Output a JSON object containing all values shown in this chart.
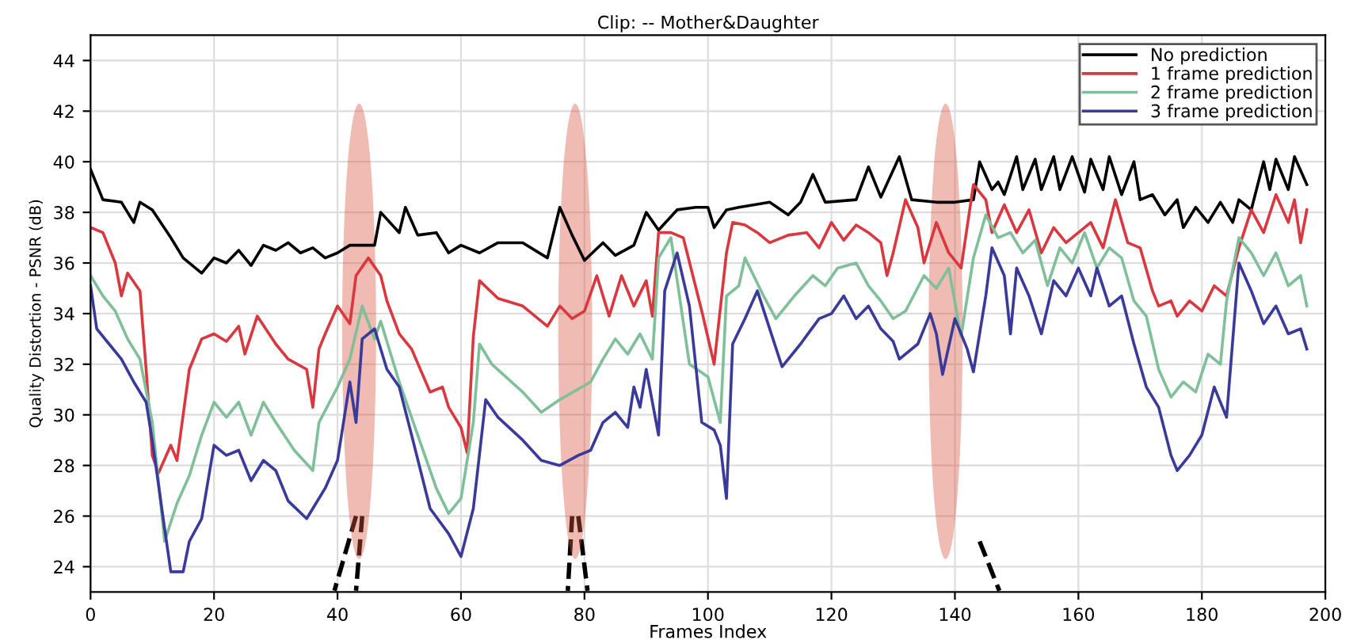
{
  "chart_data": {
    "type": "line",
    "title": "Clip: -- Mother&Daughter",
    "xlabel": "Frames Index",
    "ylabel": "Quality Distortion - PSNR (dB)",
    "xlim": [
      0,
      200
    ],
    "xticks": [
      0,
      20,
      40,
      60,
      80,
      100,
      120,
      140,
      160,
      180,
      200
    ],
    "ylim": [
      23,
      45
    ],
    "yticks": [
      24,
      26,
      28,
      30,
      32,
      34,
      36,
      38,
      40,
      42,
      44
    ],
    "grid": true,
    "legend": "top right",
    "marker": "none",
    "line_style": "solid",
    "series": [
      {
        "name": "No prediction",
        "color": "#000000",
        "x": [
          0,
          2,
          5,
          7,
          8,
          10,
          13,
          15,
          18,
          20,
          22,
          24,
          26,
          28,
          30,
          32,
          34,
          36,
          38,
          40,
          42,
          46,
          47,
          50,
          51,
          53,
          56,
          58,
          60,
          63,
          66,
          70,
          74,
          76,
          78,
          80,
          83,
          85,
          88,
          90,
          92,
          95,
          98,
          100,
          101,
          103,
          105,
          110,
          113,
          115,
          117,
          119,
          124,
          126,
          128,
          131,
          133,
          137,
          140,
          143,
          144,
          146,
          147,
          148,
          150,
          151,
          153,
          154,
          156,
          157,
          159,
          161,
          162,
          164,
          165,
          167,
          169,
          170,
          172,
          174,
          176,
          177,
          179,
          181,
          183,
          185,
          186,
          188,
          190,
          191,
          192,
          194,
          195,
          197
        ],
        "values": [
          39.7,
          38.5,
          38.4,
          37.6,
          38.4,
          38.1,
          37.0,
          36.2,
          35.6,
          36.2,
          36.0,
          36.5,
          35.9,
          36.7,
          36.5,
          36.8,
          36.4,
          36.6,
          36.2,
          36.4,
          36.7,
          36.7,
          38.0,
          37.2,
          38.2,
          37.1,
          37.2,
          36.4,
          36.7,
          36.4,
          36.8,
          36.8,
          36.2,
          38.2,
          37.1,
          36.1,
          36.8,
          36.3,
          36.7,
          38.0,
          37.3,
          38.1,
          38.2,
          38.2,
          37.4,
          38.1,
          38.2,
          38.4,
          37.9,
          38.4,
          39.5,
          38.4,
          38.5,
          39.8,
          38.6,
          40.2,
          38.5,
          38.4,
          38.4,
          38.5,
          40.0,
          38.9,
          39.2,
          38.7,
          40.2,
          38.9,
          40.1,
          38.9,
          40.2,
          38.9,
          40.2,
          38.8,
          40.1,
          38.9,
          40.2,
          38.7,
          40.0,
          38.5,
          38.7,
          37.9,
          38.5,
          37.4,
          38.2,
          37.6,
          38.4,
          37.6,
          38.5,
          38.1,
          40.0,
          38.9,
          40.1,
          38.9,
          40.2,
          39.1
        ]
      },
      {
        "name": "1 frame prediction",
        "color": "#d9383f",
        "x": [
          0,
          2,
          4,
          5,
          6,
          8,
          9,
          10,
          11,
          13,
          14,
          16,
          18,
          20,
          22,
          24,
          25,
          27,
          30,
          32,
          35,
          36,
          37,
          38,
          40,
          42,
          43,
          45,
          47,
          48,
          50,
          52,
          55,
          57,
          58,
          60,
          61,
          62,
          63,
          66,
          70,
          74,
          76,
          78,
          80,
          82,
          84,
          86,
          88,
          90,
          91,
          92,
          94,
          96,
          99,
          101,
          103,
          104,
          106,
          108,
          110,
          113,
          116,
          118,
          120,
          122,
          124,
          126,
          128,
          129,
          130,
          132,
          134,
          135,
          137,
          139,
          141,
          143,
          145,
          146,
          148,
          150,
          152,
          154,
          156,
          158,
          160,
          162,
          164,
          166,
          168,
          170,
          172,
          173,
          175,
          176,
          178,
          180,
          182,
          184,
          186,
          188,
          190,
          192,
          194,
          195,
          196,
          197
        ],
        "values": [
          37.4,
          37.2,
          36.0,
          34.7,
          35.6,
          34.9,
          31.8,
          28.4,
          27.7,
          28.8,
          28.2,
          31.8,
          33.0,
          33.2,
          32.9,
          33.5,
          32.4,
          33.9,
          32.8,
          32.2,
          31.8,
          30.3,
          32.6,
          33.2,
          34.3,
          33.6,
          35.5,
          36.2,
          35.5,
          34.5,
          33.2,
          32.6,
          30.9,
          31.1,
          30.3,
          29.5,
          28.5,
          33.1,
          35.3,
          34.6,
          34.3,
          33.5,
          34.3,
          33.8,
          34.1,
          35.5,
          33.9,
          35.5,
          34.3,
          35.3,
          33.9,
          37.2,
          37.2,
          37.0,
          34.1,
          32.0,
          36.4,
          37.6,
          37.5,
          37.2,
          36.8,
          37.1,
          37.2,
          36.6,
          37.6,
          36.9,
          37.5,
          37.2,
          36.8,
          35.5,
          36.4,
          38.5,
          37.4,
          36.0,
          37.6,
          36.4,
          35.8,
          39.1,
          38.5,
          37.2,
          38.3,
          37.2,
          38.1,
          36.4,
          37.4,
          36.8,
          37.2,
          37.6,
          36.6,
          38.5,
          36.8,
          36.6,
          34.9,
          34.3,
          34.5,
          33.9,
          34.5,
          34.1,
          35.1,
          34.7,
          36.6,
          38.1,
          37.2,
          38.7,
          37.6,
          38.5,
          36.8,
          38.1
        ]
      },
      {
        "name": "2 frame prediction",
        "color": "#7fbf99",
        "x": [
          0,
          2,
          4,
          6,
          7,
          8,
          10,
          12,
          14,
          16,
          18,
          20,
          22,
          24,
          26,
          28,
          30,
          33,
          36,
          37,
          40,
          42,
          44,
          46,
          47,
          50,
          53,
          56,
          58,
          60,
          62,
          63,
          65,
          70,
          73,
          76,
          81,
          83,
          85,
          87,
          89,
          91,
          92,
          94,
          97,
          100,
          102,
          103,
          105,
          106,
          109,
          111,
          114,
          117,
          119,
          121,
          124,
          126,
          128,
          130,
          132,
          135,
          137,
          139,
          141,
          143,
          145,
          147,
          149,
          151,
          153,
          155,
          157,
          159,
          161,
          163,
          165,
          167,
          169,
          171,
          173,
          175,
          177,
          179,
          181,
          183,
          184,
          186,
          188,
          190,
          192,
          194,
          196,
          197
        ],
        "values": [
          35.5,
          34.7,
          34.1,
          33.0,
          32.6,
          32.2,
          29.7,
          25.0,
          26.5,
          27.6,
          29.2,
          30.5,
          29.9,
          30.5,
          29.2,
          30.5,
          29.7,
          28.6,
          27.8,
          29.7,
          31.1,
          32.2,
          34.3,
          33.0,
          33.7,
          31.3,
          29.2,
          27.1,
          26.1,
          26.7,
          29.7,
          32.8,
          32.0,
          30.9,
          30.1,
          30.6,
          31.3,
          32.2,
          33.0,
          32.4,
          33.2,
          32.2,
          36.2,
          37.0,
          32.0,
          31.5,
          29.7,
          34.7,
          35.1,
          36.2,
          34.7,
          33.8,
          34.7,
          35.5,
          35.1,
          35.8,
          36.0,
          35.1,
          34.5,
          33.8,
          34.1,
          35.5,
          35.0,
          35.8,
          33.1,
          36.2,
          37.9,
          37.0,
          37.2,
          36.4,
          36.9,
          35.1,
          36.6,
          36.0,
          37.2,
          35.8,
          36.6,
          36.2,
          34.5,
          33.9,
          31.8,
          30.7,
          31.3,
          30.9,
          32.4,
          32.0,
          34.5,
          37.0,
          36.4,
          35.5,
          36.4,
          35.1,
          35.5,
          34.3
        ]
      },
      {
        "name": "3 frame prediction",
        "color": "#3a3a9a",
        "x": [
          0,
          1,
          3,
          5,
          7,
          9,
          10,
          12,
          13,
          15,
          16,
          18,
          20,
          22,
          24,
          26,
          28,
          30,
          32,
          35,
          36,
          38,
          40,
          42,
          43,
          44,
          46,
          48,
          50,
          52,
          55,
          58,
          60,
          62,
          64,
          66,
          70,
          73,
          76,
          79,
          81,
          83,
          85,
          87,
          88,
          89,
          90,
          92,
          93,
          95,
          97,
          99,
          101,
          102,
          103,
          104,
          106,
          108,
          110,
          112,
          115,
          118,
          120,
          122,
          124,
          126,
          128,
          130,
          131,
          134,
          136,
          137,
          138,
          140,
          142,
          143,
          145,
          146,
          148,
          149,
          150,
          152,
          154,
          156,
          158,
          160,
          162,
          163,
          165,
          167,
          169,
          171,
          173,
          175,
          176,
          178,
          180,
          182,
          184,
          186,
          188,
          190,
          192,
          194,
          196,
          197
        ],
        "values": [
          35.1,
          33.4,
          32.8,
          32.2,
          31.3,
          30.5,
          29.0,
          25.5,
          23.8,
          23.8,
          25.0,
          25.9,
          28.8,
          28.4,
          28.6,
          27.4,
          28.2,
          27.8,
          26.6,
          25.9,
          26.3,
          27.1,
          28.2,
          31.3,
          29.7,
          33.0,
          33.4,
          31.8,
          31.1,
          29.2,
          26.3,
          25.3,
          24.4,
          26.3,
          30.6,
          29.9,
          29.0,
          28.2,
          28.0,
          28.4,
          28.6,
          29.7,
          30.1,
          29.5,
          31.1,
          30.3,
          31.8,
          29.2,
          34.9,
          36.4,
          34.3,
          29.7,
          29.4,
          28.8,
          26.7,
          32.8,
          33.8,
          34.9,
          33.4,
          31.9,
          32.8,
          33.8,
          34.0,
          34.7,
          33.8,
          34.3,
          33.4,
          32.9,
          32.2,
          32.8,
          34.0,
          33.2,
          31.6,
          33.8,
          32.6,
          31.7,
          34.7,
          36.6,
          35.5,
          33.2,
          35.8,
          34.7,
          33.2,
          35.3,
          34.7,
          35.8,
          34.7,
          35.8,
          34.3,
          34.7,
          32.8,
          31.1,
          30.3,
          28.4,
          27.8,
          28.4,
          29.2,
          31.1,
          29.9,
          36.0,
          34.9,
          33.6,
          34.3,
          33.2,
          33.4,
          32.6
        ]
      }
    ]
  }
}
